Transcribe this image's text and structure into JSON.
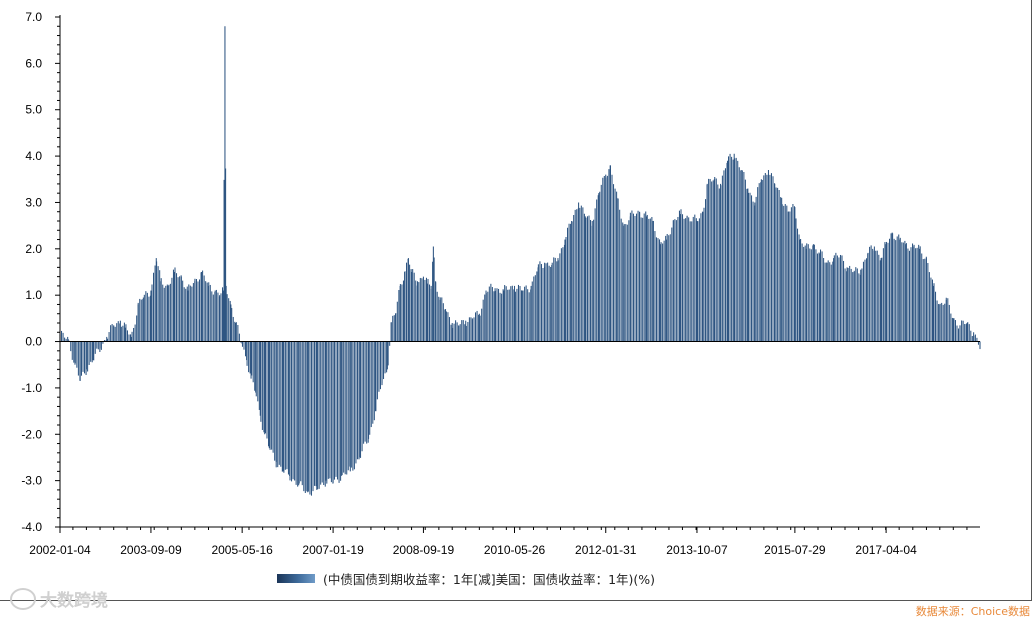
{
  "chart_data": {
    "type": "bar",
    "title": "",
    "xlabel": "",
    "ylabel": "",
    "ylim": [
      -4.0,
      7.0
    ],
    "y_ticks": [
      "7.0",
      "6.0",
      "5.0",
      "4.0",
      "3.0",
      "2.0",
      "1.0",
      "0.0",
      "-1.0",
      "-2.0",
      "-3.0",
      "-4.0"
    ],
    "x_tick_labels": [
      "2002-01-04",
      "2003-09-09",
      "2005-05-16",
      "2007-01-19",
      "2008-09-19",
      "2010-05-26",
      "2012-01-31",
      "2013-10-07",
      "2015-07-29",
      "2017-04-04"
    ],
    "x_range": [
      "2002-01-04",
      "2018-12-28"
    ],
    "grid": false,
    "legend_position": "bottom",
    "bar_color": "#2e5582",
    "series": [
      {
        "name": "(中债国债到期收益率：1年[减]美国：国债收益率：1年)(%)",
        "points": [
          [
            "2002-01-04",
            0.15
          ],
          [
            "2002-03-01",
            0.05
          ],
          [
            "2002-04-15",
            -0.5
          ],
          [
            "2002-05-20",
            -0.85
          ],
          [
            "2002-07-01",
            -0.6
          ],
          [
            "2002-08-15",
            -0.4
          ],
          [
            "2002-10-01",
            -0.15
          ],
          [
            "2002-11-15",
            0.1
          ],
          [
            "2003-01-01",
            0.35
          ],
          [
            "2003-02-15",
            0.45
          ],
          [
            "2003-03-20",
            0.3
          ],
          [
            "2003-05-01",
            0.1
          ],
          [
            "2003-06-15",
            0.8
          ],
          [
            "2003-07-20",
            0.95
          ],
          [
            "2003-09-09",
            1.1
          ],
          [
            "2003-10-15",
            1.8
          ],
          [
            "2003-11-15",
            1.3
          ],
          [
            "2004-01-01",
            1.2
          ],
          [
            "2004-02-15",
            1.5
          ],
          [
            "2004-04-01",
            1.4
          ],
          [
            "2004-05-15",
            1.1
          ],
          [
            "2004-07-01",
            1.3
          ],
          [
            "2004-08-15",
            1.5
          ],
          [
            "2004-10-01",
            1.2
          ],
          [
            "2004-11-15",
            1.1
          ],
          [
            "2004-12-15",
            1.0
          ],
          [
            "2005-01-10",
            1.1
          ],
          [
            "2005-01-20",
            6.8
          ],
          [
            "2005-01-28",
            1.2
          ],
          [
            "2005-03-01",
            0.8
          ],
          [
            "2005-04-01",
            0.4
          ],
          [
            "2005-05-16",
            -0.05
          ],
          [
            "2005-06-15",
            -0.4
          ],
          [
            "2005-07-15",
            -0.8
          ],
          [
            "2005-08-15",
            -1.1
          ],
          [
            "2005-09-15",
            -1.6
          ],
          [
            "2005-10-15",
            -2.0
          ],
          [
            "2005-11-15",
            -2.3
          ],
          [
            "2006-01-01",
            -2.6
          ],
          [
            "2006-02-15",
            -2.8
          ],
          [
            "2006-04-01",
            -2.9
          ],
          [
            "2006-06-01",
            -3.1
          ],
          [
            "2006-08-01",
            -3.25
          ],
          [
            "2006-10-01",
            -3.2
          ],
          [
            "2006-12-01",
            -3.0
          ],
          [
            "2007-01-19",
            -3.05
          ],
          [
            "2007-03-15",
            -2.9
          ],
          [
            "2007-05-15",
            -2.8
          ],
          [
            "2007-07-15",
            -2.5
          ],
          [
            "2007-09-15",
            -2.1
          ],
          [
            "2007-11-01",
            -1.5
          ],
          [
            "2007-12-15",
            -0.9
          ],
          [
            "2008-01-20",
            -0.6
          ],
          [
            "2008-02-15",
            0.4
          ],
          [
            "2008-03-15",
            0.6
          ],
          [
            "2008-04-15",
            1.2
          ],
          [
            "2008-05-15",
            1.5
          ],
          [
            "2008-06-10",
            1.8
          ],
          [
            "2008-07-01",
            1.5
          ],
          [
            "2008-08-10",
            1.3
          ],
          [
            "2008-09-19",
            1.4
          ],
          [
            "2008-10-15",
            1.25
          ],
          [
            "2008-11-10",
            1.2
          ],
          [
            "2008-11-25",
            2.05
          ],
          [
            "2008-12-10",
            1.3
          ],
          [
            "2009-01-10",
            0.9
          ],
          [
            "2009-02-15",
            0.7
          ],
          [
            "2009-04-01",
            0.4
          ],
          [
            "2009-05-15",
            0.35
          ],
          [
            "2009-07-01",
            0.45
          ],
          [
            "2009-08-15",
            0.5
          ],
          [
            "2009-10-01",
            0.6
          ],
          [
            "2009-11-15",
            1.1
          ],
          [
            "2010-01-15",
            1.15
          ],
          [
            "2010-03-15",
            1.1
          ],
          [
            "2010-05-26",
            1.2
          ],
          [
            "2010-07-15",
            1.1
          ],
          [
            "2010-09-15",
            1.2
          ],
          [
            "2010-11-01",
            1.6
          ],
          [
            "2010-12-15",
            1.7
          ],
          [
            "2011-02-01",
            1.65
          ],
          [
            "2011-03-15",
            1.8
          ],
          [
            "2011-05-01",
            2.2
          ],
          [
            "2011-06-15",
            2.6
          ],
          [
            "2011-08-01",
            3.0
          ],
          [
            "2011-09-15",
            2.7
          ],
          [
            "2011-11-01",
            2.6
          ],
          [
            "2011-12-15",
            3.2
          ],
          [
            "2012-01-31",
            3.6
          ],
          [
            "2012-03-01",
            3.8
          ],
          [
            "2012-04-15",
            3.1
          ],
          [
            "2012-06-01",
            2.5
          ],
          [
            "2012-07-15",
            2.7
          ],
          [
            "2012-09-15",
            2.8
          ],
          [
            "2012-11-01",
            2.7
          ],
          [
            "2012-12-15",
            2.6
          ],
          [
            "2013-02-01",
            2.1
          ],
          [
            "2013-03-15",
            2.2
          ],
          [
            "2013-05-01",
            2.6
          ],
          [
            "2013-06-15",
            2.75
          ],
          [
            "2013-08-01",
            2.7
          ],
          [
            "2013-10-07",
            2.6
          ],
          [
            "2013-11-15",
            2.8
          ],
          [
            "2013-12-15",
            3.4
          ],
          [
            "2014-02-01",
            3.5
          ],
          [
            "2014-03-15",
            3.4
          ],
          [
            "2014-05-01",
            3.9
          ],
          [
            "2014-06-15",
            4.05
          ],
          [
            "2014-08-01",
            3.7
          ],
          [
            "2014-09-15",
            3.3
          ],
          [
            "2014-11-01",
            3.0
          ],
          [
            "2014-12-15",
            3.5
          ],
          [
            "2015-02-01",
            3.7
          ],
          [
            "2015-03-15",
            3.4
          ],
          [
            "2015-05-01",
            3.1
          ],
          [
            "2015-06-15",
            2.8
          ],
          [
            "2015-07-29",
            2.9
          ],
          [
            "2015-09-01",
            2.2
          ],
          [
            "2015-10-15",
            2.0
          ],
          [
            "2015-12-01",
            2.1
          ],
          [
            "2016-01-15",
            1.9
          ],
          [
            "2016-03-01",
            1.7
          ],
          [
            "2016-04-15",
            1.8
          ],
          [
            "2016-06-01",
            1.85
          ],
          [
            "2016-07-15",
            1.6
          ],
          [
            "2016-09-01",
            1.5
          ],
          [
            "2016-10-15",
            1.55
          ],
          [
            "2016-12-01",
            1.9
          ],
          [
            "2017-01-15",
            2.05
          ],
          [
            "2017-03-01",
            1.8
          ],
          [
            "2017-04-04",
            2.1
          ],
          [
            "2017-05-15",
            2.35
          ],
          [
            "2017-07-01",
            2.2
          ],
          [
            "2017-08-15",
            2.1
          ],
          [
            "2017-10-01",
            2.05
          ],
          [
            "2017-11-15",
            2.0
          ],
          [
            "2018-01-01",
            1.8
          ],
          [
            "2018-02-15",
            1.2
          ],
          [
            "2018-04-01",
            0.8
          ],
          [
            "2018-05-15",
            0.9
          ],
          [
            "2018-07-01",
            0.5
          ],
          [
            "2018-08-15",
            0.35
          ],
          [
            "2018-10-01",
            0.4
          ],
          [
            "2018-11-15",
            0.2
          ],
          [
            "2018-12-28",
            -0.15
          ]
        ]
      }
    ]
  },
  "footer": {
    "watermark_text": "大数跨境",
    "source_text": "数据来源：Choice数据"
  }
}
